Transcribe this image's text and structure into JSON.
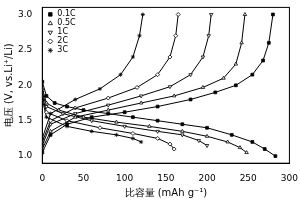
{
  "chart_data": {
    "type": "line",
    "x_label": "比容量 (mAh g⁻¹)",
    "y_label": "电压 (V, vs.Li⁺/Li)",
    "xlim": [
      0,
      300
    ],
    "xticks": [
      0,
      50,
      100,
      150,
      200,
      250,
      300
    ],
    "ylim": [
      0.9,
      3.1
    ],
    "yticks": [
      {
        "value": 1,
        "label": "1.0"
      },
      {
        "value": 1.5,
        "label": "1.5"
      },
      {
        "value": 2,
        "label": "2.0"
      },
      {
        "value": 2.5,
        "label": "2.5"
      },
      {
        "value": 3,
        "label": "3.0"
      }
    ],
    "grid": false,
    "legend": "upper left",
    "series": [
      {
        "name": "0.1C",
        "color": "#000000",
        "marker": "square",
        "x": [
          0,
          5,
          15,
          30,
          50,
          80,
          110,
          140,
          170,
          200,
          230,
          255,
          270,
          283,
          null,
          0,
          10,
          30,
          60,
          100,
          140,
          180,
          210,
          235,
          255,
          268,
          275,
          280
        ],
        "values": [
          2.05,
          1.85,
          1.75,
          1.7,
          1.65,
          1.6,
          1.55,
          1.5,
          1.45,
          1.4,
          1.3,
          1.2,
          1.1,
          1.0,
          null,
          1.05,
          1.3,
          1.45,
          1.55,
          1.62,
          1.7,
          1.8,
          1.9,
          2.0,
          2.15,
          2.35,
          2.6,
          3.0
        ]
      },
      {
        "name": "0.5C",
        "color": "#000000",
        "marker": "triangle",
        "x": [
          0,
          5,
          20,
          50,
          90,
          130,
          170,
          200,
          225,
          240,
          248,
          null,
          0,
          10,
          40,
          80,
          120,
          160,
          195,
          220,
          235,
          242,
          246
        ],
        "values": [
          1.95,
          1.75,
          1.65,
          1.55,
          1.48,
          1.42,
          1.35,
          1.28,
          1.2,
          1.12,
          1.05,
          null,
          1.1,
          1.35,
          1.55,
          1.65,
          1.75,
          1.85,
          1.97,
          2.1,
          2.3,
          2.6,
          3.0
        ]
      },
      {
        "name": "1C",
        "color": "#000000",
        "marker": "triangle_down",
        "x": [
          0,
          5,
          25,
          60,
          100,
          140,
          170,
          190,
          200,
          null,
          0,
          10,
          40,
          80,
          120,
          155,
          180,
          195,
          202,
          205
        ],
        "values": [
          1.9,
          1.7,
          1.6,
          1.5,
          1.42,
          1.35,
          1.3,
          1.22,
          1.15,
          null,
          1.15,
          1.45,
          1.6,
          1.72,
          1.85,
          1.98,
          2.15,
          2.4,
          2.7,
          3.0
        ]
      },
      {
        "name": "2C",
        "color": "#000000",
        "marker": "diamond",
        "x": [
          0,
          5,
          30,
          70,
          110,
          140,
          155,
          160,
          null,
          0,
          10,
          40,
          80,
          115,
          140,
          155,
          162,
          165
        ],
        "values": [
          1.85,
          1.62,
          1.5,
          1.4,
          1.32,
          1.25,
          1.17,
          1.1,
          null,
          1.2,
          1.5,
          1.68,
          1.82,
          1.97,
          2.15,
          2.4,
          2.7,
          3.0
        ]
      },
      {
        "name": "3C",
        "color": "#000000",
        "marker": "star",
        "x": [
          0,
          5,
          30,
          60,
          90,
          110,
          120,
          null,
          0,
          10,
          40,
          70,
          95,
          110,
          118,
          122
        ],
        "values": [
          1.8,
          1.55,
          1.42,
          1.35,
          1.3,
          1.25,
          1.2,
          null,
          1.25,
          1.6,
          1.8,
          1.95,
          2.15,
          2.4,
          2.7,
          3.0
        ]
      }
    ]
  }
}
